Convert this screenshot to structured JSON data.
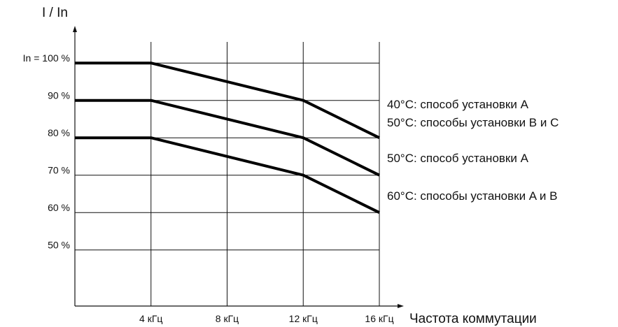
{
  "chart_data": {
    "type": "line",
    "ylabel": "I / In",
    "xlabel": "Частота коммутации",
    "x_ticks": [
      {
        "value": 4,
        "label": "4 кГц"
      },
      {
        "value": 8,
        "label": "8 кГц"
      },
      {
        "value": 12,
        "label": "12 кГц"
      },
      {
        "value": 16,
        "label": "16 кГц"
      }
    ],
    "y_ticks": [
      {
        "value": 100,
        "label": "In = 100 %"
      },
      {
        "value": 90,
        "label": "90 %"
      },
      {
        "value": 80,
        "label": "80 %"
      },
      {
        "value": 70,
        "label": "70 %"
      },
      {
        "value": 60,
        "label": "60 %"
      },
      {
        "value": 50,
        "label": "50 %"
      }
    ],
    "xlim": [
      0,
      16
    ],
    "ylim": [
      35,
      112
    ],
    "grid": true,
    "series": [
      {
        "name": "40°C: способ установки A\n50°C: способы установки B и C",
        "x": [
          0,
          4,
          12,
          16
        ],
        "y": [
          100,
          100,
          90,
          80
        ]
      },
      {
        "name": "50°C: способ установки A",
        "x": [
          0,
          4,
          12,
          16
        ],
        "y": [
          90,
          90,
          80,
          70
        ]
      },
      {
        "name": "60°C: способы установки A и B",
        "x": [
          0,
          4,
          12,
          16
        ],
        "y": [
          80,
          80,
          70,
          60
        ]
      }
    ]
  }
}
